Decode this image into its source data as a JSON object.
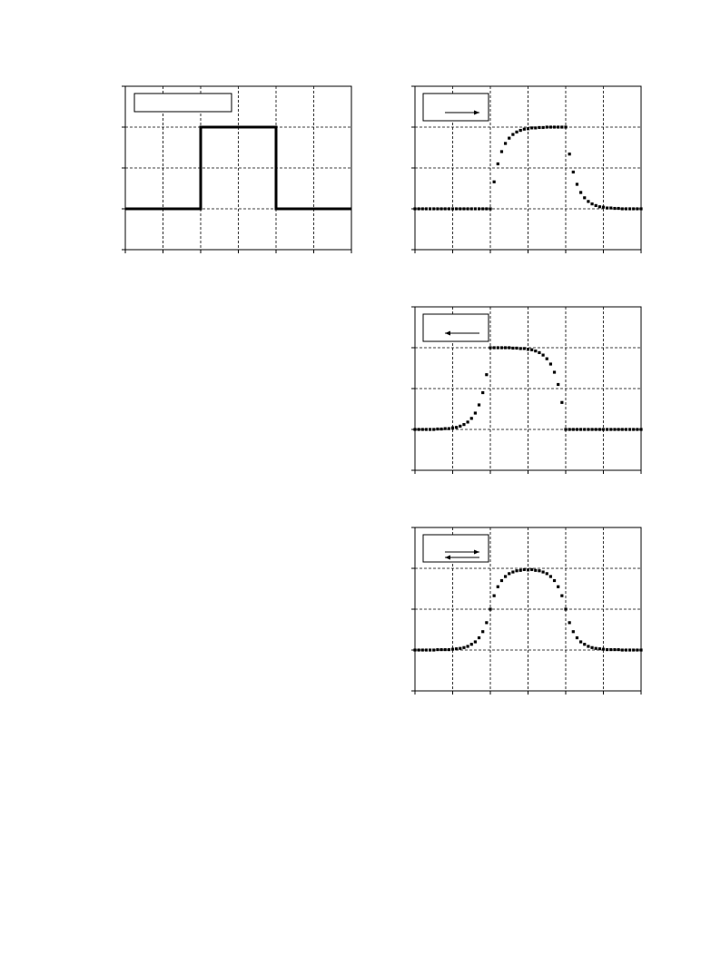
{
  "chart_data": [
    {
      "type": "line",
      "x": [
        0,
        2,
        2,
        4,
        4,
        6
      ],
      "values": [
        0,
        0,
        2,
        2,
        0,
        0
      ],
      "color": "#000000",
      "xlim": [
        0,
        6
      ],
      "xticks": [
        0,
        1,
        2,
        3,
        4,
        5,
        6
      ],
      "ylim": [
        -1,
        3
      ],
      "yticks": [
        -1,
        0,
        1,
        2,
        3
      ],
      "grid": true
    },
    {
      "type": "scatter",
      "x": [
        0,
        0.1,
        0.2,
        0.3,
        0.4,
        0.5,
        0.6,
        0.7,
        0.8,
        0.9,
        1,
        1.1,
        1.2,
        1.3,
        1.4,
        1.5,
        1.6,
        1.7,
        1.8,
        1.9,
        2,
        2.1,
        2.2,
        2.3,
        2.4,
        2.5,
        2.6,
        2.7,
        2.8,
        2.9,
        3,
        3.1,
        3.2,
        3.3,
        3.4,
        3.5,
        3.6,
        3.7,
        3.8,
        3.9,
        4,
        4.1,
        4.2,
        4.3,
        4.4,
        4.5,
        4.6,
        4.7,
        4.8,
        4.9,
        5,
        5.1,
        5.2,
        5.3,
        5.4,
        5.5,
        5.6,
        5.7,
        5.8,
        5.9,
        6
      ],
      "values": [
        0,
        0,
        0,
        0,
        0,
        0,
        0,
        0,
        0,
        0,
        0,
        0,
        0,
        0,
        0,
        0,
        0,
        0,
        0,
        0,
        0,
        0.66,
        1.1,
        1.4,
        1.6,
        1.73,
        1.82,
        1.88,
        1.92,
        1.95,
        1.96,
        1.98,
        1.98,
        1.99,
        1.99,
        2,
        2,
        2,
        2,
        2,
        2,
        1.34,
        0.9,
        0.6,
        0.4,
        0.27,
        0.18,
        0.12,
        0.08,
        0.05,
        0.04,
        0.02,
        0.02,
        0.01,
        0.01,
        0,
        0,
        0,
        0,
        0,
        0
      ],
      "color": "#000000",
      "xlim": [
        0,
        6
      ],
      "xticks": [
        0,
        1,
        2,
        3,
        4,
        5,
        6
      ],
      "ylim": [
        -1,
        3
      ],
      "yticks": [
        -1,
        0,
        1,
        2,
        3
      ],
      "grid": true
    },
    {
      "type": "scatter",
      "x": [
        0,
        0.1,
        0.2,
        0.3,
        0.4,
        0.5,
        0.6,
        0.7,
        0.8,
        0.9,
        1,
        1.1,
        1.2,
        1.3,
        1.4,
        1.5,
        1.6,
        1.7,
        1.8,
        1.9,
        2,
        2.1,
        2.2,
        2.3,
        2.4,
        2.5,
        2.6,
        2.7,
        2.8,
        2.9,
        3,
        3.1,
        3.2,
        3.3,
        3.4,
        3.5,
        3.6,
        3.7,
        3.8,
        3.9,
        4,
        4.1,
        4.2,
        4.3,
        4.4,
        4.5,
        4.6,
        4.7,
        4.8,
        4.9,
        5,
        5.1,
        5.2,
        5.3,
        5.4,
        5.5,
        5.6,
        5.7,
        5.8,
        5.9,
        6
      ],
      "values": [
        0,
        0,
        0,
        0,
        0,
        0,
        0.01,
        0.01,
        0.02,
        0.02,
        0.04,
        0.05,
        0.08,
        0.12,
        0.18,
        0.27,
        0.4,
        0.6,
        0.9,
        1.34,
        2,
        2,
        2,
        2,
        2,
        2,
        1.99,
        1.99,
        1.98,
        1.98,
        1.96,
        1.95,
        1.92,
        1.88,
        1.82,
        1.73,
        1.6,
        1.4,
        1.1,
        0.66,
        0,
        0,
        0,
        0,
        0,
        0,
        0,
        0,
        0,
        0,
        0,
        0,
        0,
        0,
        0,
        0,
        0,
        0,
        0,
        0,
        0
      ],
      "color": "#000000",
      "xlim": [
        0,
        6
      ],
      "xticks": [
        0,
        1,
        2,
        3,
        4,
        5,
        6
      ],
      "ylim": [
        -1,
        3
      ],
      "yticks": [
        -1,
        0,
        1,
        2,
        3
      ],
      "grid": true
    },
    {
      "type": "scatter",
      "x": [
        0,
        0.1,
        0.2,
        0.3,
        0.4,
        0.5,
        0.6,
        0.7,
        0.8,
        0.9,
        1,
        1.1,
        1.2,
        1.3,
        1.4,
        1.5,
        1.6,
        1.7,
        1.8,
        1.9,
        2,
        2.1,
        2.2,
        2.3,
        2.4,
        2.5,
        2.6,
        2.7,
        2.8,
        2.9,
        3,
        3.1,
        3.2,
        3.3,
        3.4,
        3.5,
        3.6,
        3.7,
        3.8,
        3.9,
        4,
        4.1,
        4.2,
        4.3,
        4.4,
        4.5,
        4.6,
        4.7,
        4.8,
        4.9,
        5,
        5.1,
        5.2,
        5.3,
        5.4,
        5.5,
        5.6,
        5.7,
        5.8,
        5.9,
        6
      ],
      "values": [
        0,
        0,
        0,
        0,
        0,
        0,
        0.01,
        0.01,
        0.01,
        0.01,
        0.02,
        0.03,
        0.04,
        0.06,
        0.09,
        0.14,
        0.2,
        0.3,
        0.45,
        0.67,
        1,
        1.33,
        1.55,
        1.7,
        1.8,
        1.87,
        1.91,
        1.94,
        1.95,
        1.97,
        1.96,
        1.97,
        1.95,
        1.94,
        1.91,
        1.87,
        1.8,
        1.7,
        1.55,
        1.33,
        1,
        0.67,
        0.45,
        0.3,
        0.2,
        0.14,
        0.09,
        0.06,
        0.04,
        0.03,
        0.02,
        0.01,
        0.01,
        0.01,
        0.01,
        0,
        0,
        0,
        0,
        0,
        0
      ],
      "color": "#000000",
      "xlim": [
        0,
        6
      ],
      "xticks": [
        0,
        1,
        2,
        3,
        4,
        5,
        6
      ],
      "ylim": [
        -1,
        3
      ],
      "yticks": [
        -1,
        0,
        1,
        2,
        3
      ],
      "grid": true
    }
  ]
}
